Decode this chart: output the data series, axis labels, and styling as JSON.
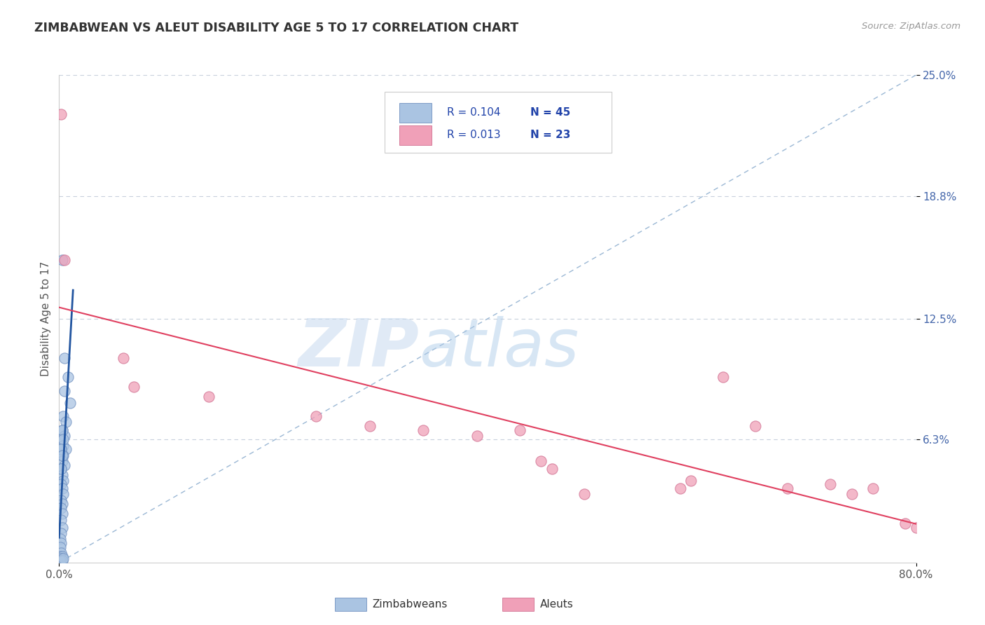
{
  "title": "ZIMBABWEAN VS ALEUT DISABILITY AGE 5 TO 17 CORRELATION CHART",
  "source_text": "Source: ZipAtlas.com",
  "ylabel": "Disability Age 5 to 17",
  "xlim": [
    0.0,
    0.8
  ],
  "ylim": [
    0.0,
    0.25
  ],
  "xticklabels": [
    "0.0%",
    "80.0%"
  ],
  "xtick_values": [
    0.0,
    0.8
  ],
  "ytick_labels": [
    "6.3%",
    "12.5%",
    "18.8%",
    "25.0%"
  ],
  "ytick_values": [
    0.063,
    0.125,
    0.188,
    0.25
  ],
  "watermark_ZIP": "ZIP",
  "watermark_atlas": "atlas",
  "blue_color": "#aac4e2",
  "pink_color": "#f0a0b8",
  "blue_edge": "#7090c0",
  "pink_edge": "#d07090",
  "blue_line_color": "#2255a0",
  "pink_line_color": "#e04060",
  "diagonal_color": "#90b0d0",
  "title_color": "#333333",
  "source_color": "#999999",
  "axis_label_color": "#4466aa",
  "ylabel_color": "#555555",
  "grid_color": "#c8d0dc",
  "legend_text_color": "#2244aa",
  "zimbabwean_dots": [
    [
      0.003,
      0.155
    ],
    [
      0.005,
      0.105
    ],
    [
      0.008,
      0.095
    ],
    [
      0.005,
      0.088
    ],
    [
      0.01,
      0.082
    ],
    [
      0.004,
      0.075
    ],
    [
      0.006,
      0.072
    ],
    [
      0.003,
      0.068
    ],
    [
      0.005,
      0.065
    ],
    [
      0.002,
      0.063
    ],
    [
      0.004,
      0.06
    ],
    [
      0.006,
      0.058
    ],
    [
      0.003,
      0.055
    ],
    [
      0.002,
      0.058
    ],
    [
      0.004,
      0.055
    ],
    [
      0.003,
      0.052
    ],
    [
      0.005,
      0.05
    ],
    [
      0.002,
      0.048
    ],
    [
      0.003,
      0.045
    ],
    [
      0.004,
      0.042
    ],
    [
      0.002,
      0.04
    ],
    [
      0.003,
      0.038
    ],
    [
      0.004,
      0.035
    ],
    [
      0.002,
      0.032
    ],
    [
      0.003,
      0.03
    ],
    [
      0.002,
      0.028
    ],
    [
      0.003,
      0.025
    ],
    [
      0.002,
      0.022
    ],
    [
      0.003,
      0.018
    ],
    [
      0.002,
      0.015
    ],
    [
      0.001,
      0.012
    ],
    [
      0.002,
      0.01
    ],
    [
      0.001,
      0.008
    ],
    [
      0.002,
      0.005
    ],
    [
      0.001,
      0.003
    ],
    [
      0.003,
      0.003
    ],
    [
      0.002,
      0.002
    ],
    [
      0.001,
      0.001
    ],
    [
      0.003,
      0.001
    ],
    [
      0.004,
      0.002
    ],
    [
      0.002,
      0.048
    ],
    [
      0.003,
      0.068
    ],
    [
      0.004,
      0.063
    ],
    [
      0.002,
      0.058
    ],
    [
      0.003,
      0.055
    ]
  ],
  "aleut_dots": [
    [
      0.002,
      0.23
    ],
    [
      0.005,
      0.155
    ],
    [
      0.06,
      0.105
    ],
    [
      0.07,
      0.09
    ],
    [
      0.14,
      0.085
    ],
    [
      0.24,
      0.075
    ],
    [
      0.29,
      0.07
    ],
    [
      0.34,
      0.068
    ],
    [
      0.39,
      0.065
    ],
    [
      0.43,
      0.068
    ],
    [
      0.45,
      0.052
    ],
    [
      0.46,
      0.048
    ],
    [
      0.49,
      0.035
    ],
    [
      0.58,
      0.038
    ],
    [
      0.59,
      0.042
    ],
    [
      0.62,
      0.095
    ],
    [
      0.65,
      0.07
    ],
    [
      0.68,
      0.038
    ],
    [
      0.72,
      0.04
    ],
    [
      0.74,
      0.035
    ],
    [
      0.76,
      0.038
    ],
    [
      0.79,
      0.02
    ],
    [
      0.8,
      0.018
    ]
  ]
}
